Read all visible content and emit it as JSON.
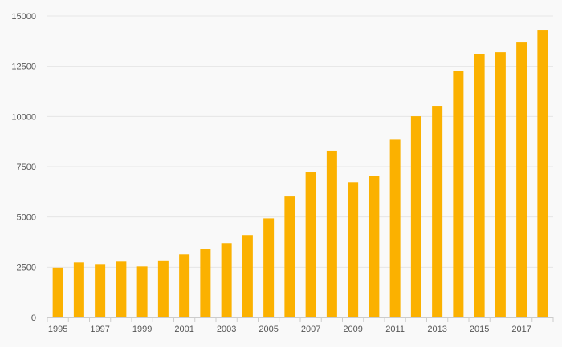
{
  "chart_data": {
    "type": "bar",
    "title": "",
    "xlabel": "",
    "ylabel": "",
    "categories": [
      "1995",
      "1996",
      "1997",
      "1998",
      "1999",
      "2000",
      "2001",
      "2002",
      "2003",
      "2004",
      "2005",
      "2006",
      "2007",
      "2008",
      "2009",
      "2010",
      "2011",
      "2012",
      "2013",
      "2014",
      "2015",
      "2016",
      "2017",
      "2018"
    ],
    "x_tick_labels": [
      "1995",
      "1997",
      "1999",
      "2001",
      "2003",
      "2005",
      "2007",
      "2009",
      "2011",
      "2013",
      "2015",
      "2017"
    ],
    "series": [
      {
        "name": "",
        "values": [
          2480,
          2740,
          2620,
          2780,
          2540,
          2800,
          3140,
          3390,
          3700,
          4100,
          4930,
          6020,
          7220,
          8300,
          6730,
          7050,
          8840,
          10010,
          10530,
          12250,
          13120,
          13200,
          13680,
          14280
        ]
      }
    ],
    "y_ticks": [
      0,
      2500,
      5000,
      7500,
      10000,
      12500,
      15000
    ],
    "ylim": [
      0,
      15000
    ],
    "grid": true,
    "legend": "none",
    "colors": {
      "bar": "#fbb100",
      "grid": "#e6e6e6",
      "axis": "#cccccc",
      "text": "#555555",
      "background": "#f9f9f9"
    }
  }
}
